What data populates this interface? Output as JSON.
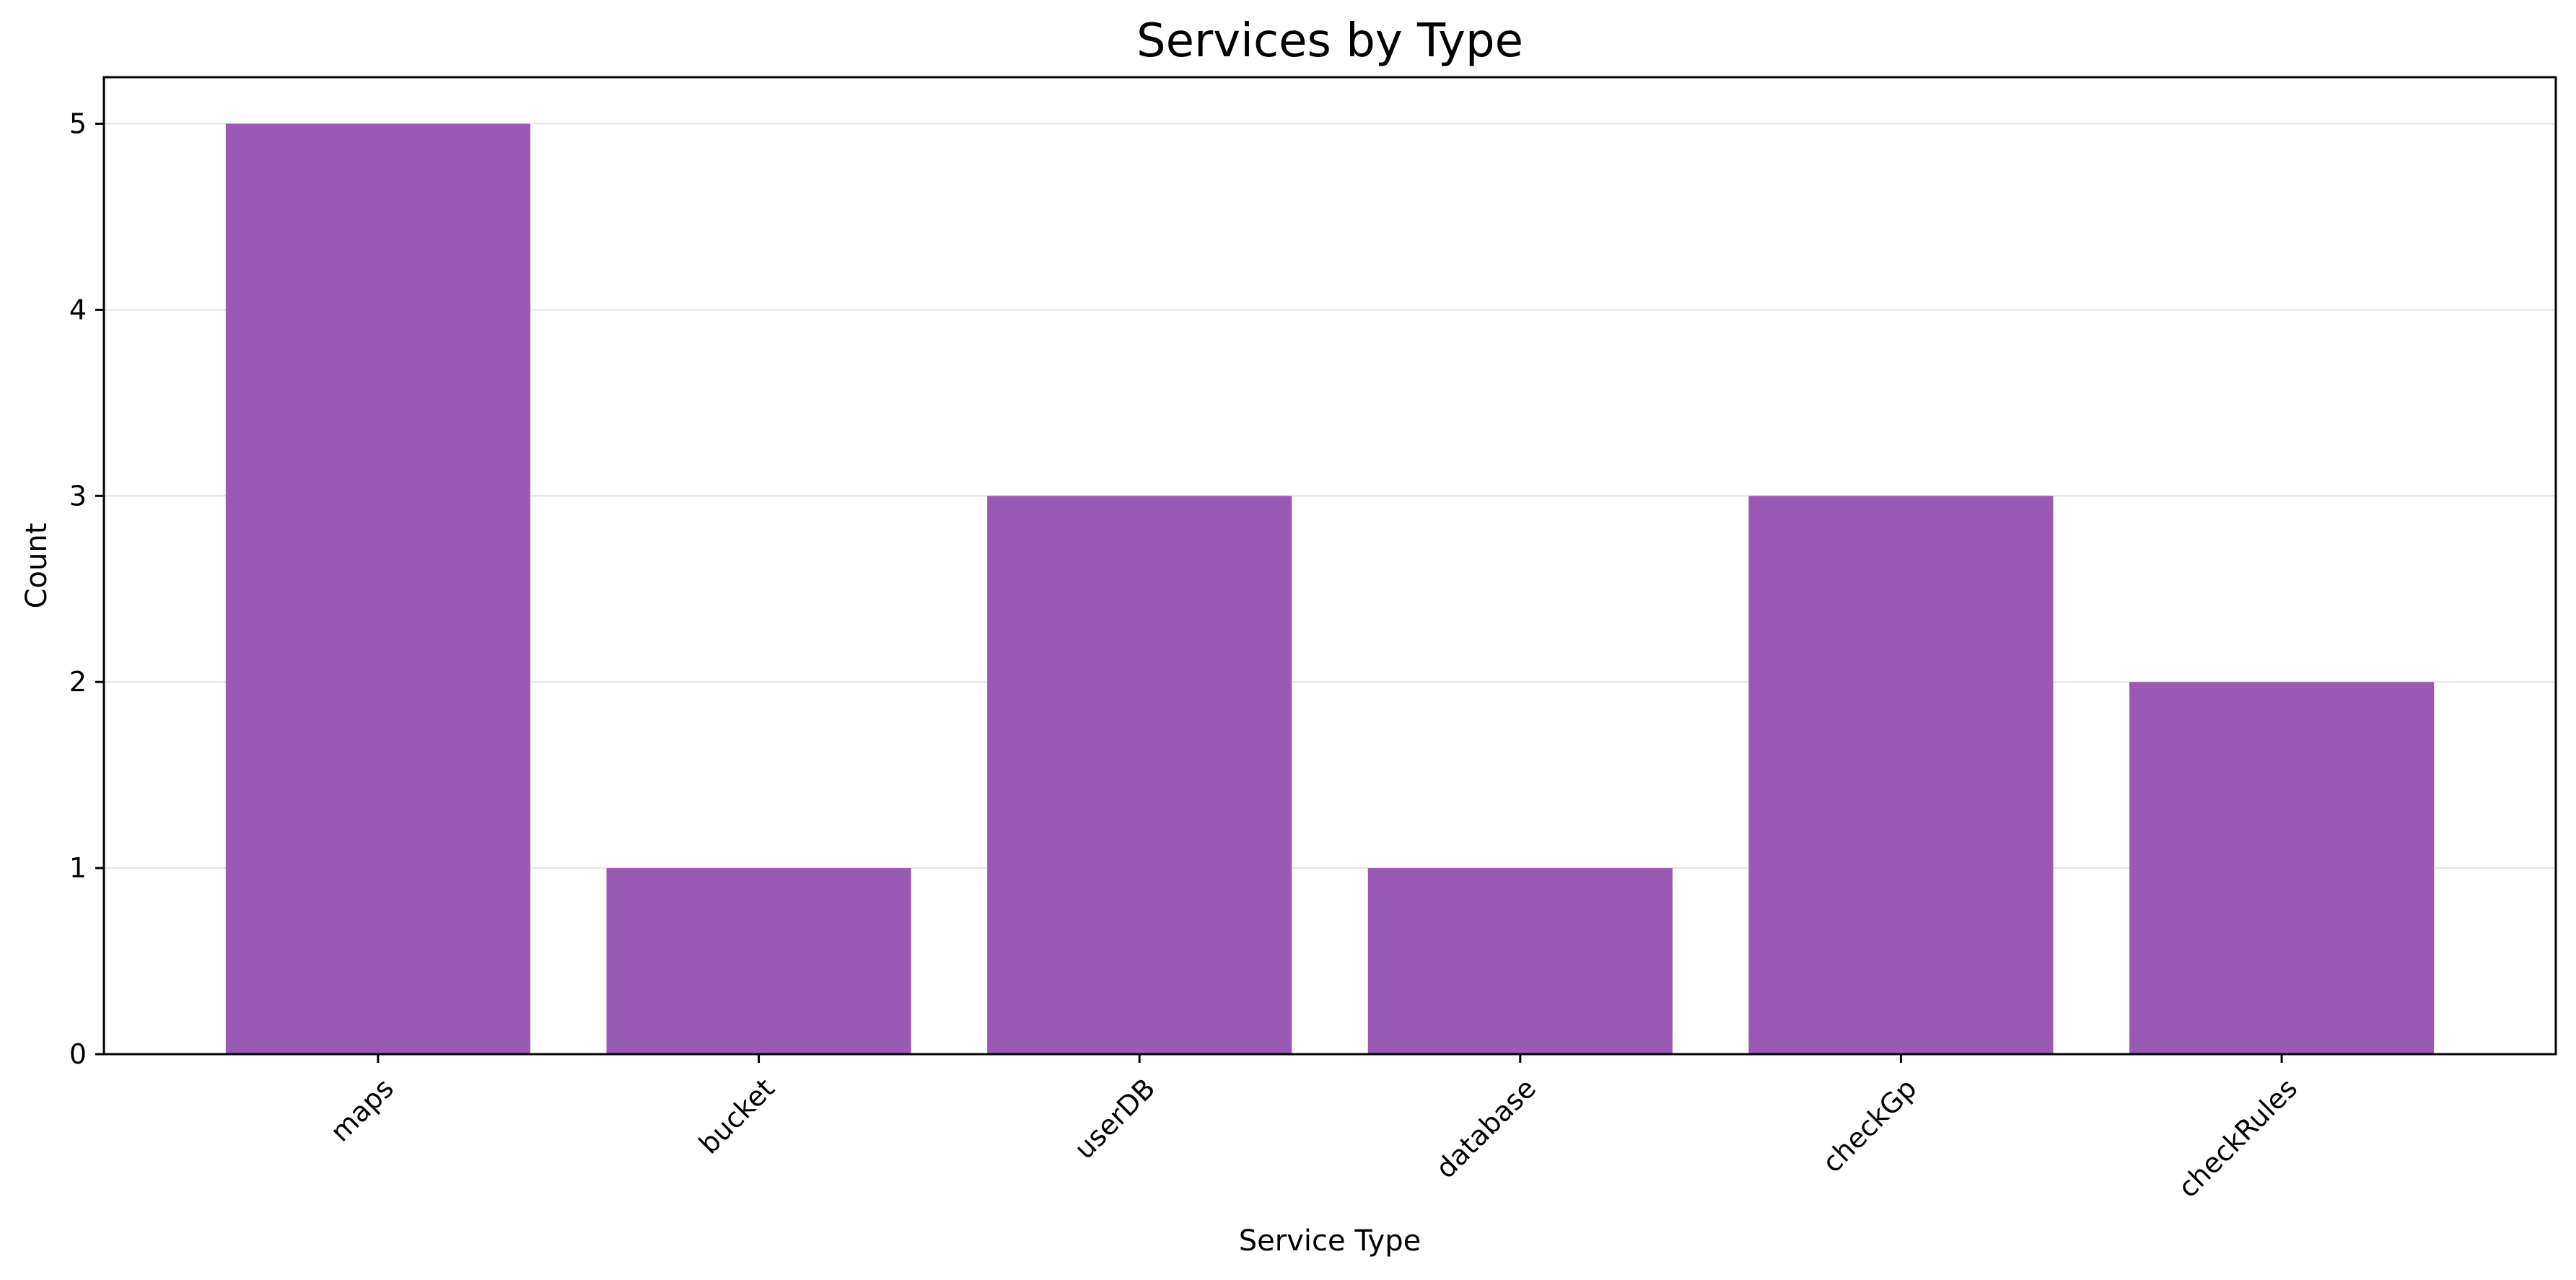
{
  "chart_data": {
    "type": "bar",
    "title": "Services by Type",
    "xlabel": "Service Type",
    "ylabel": "Count",
    "categories": [
      "maps",
      "bucket",
      "userDB",
      "database",
      "checkGp",
      "checkRules"
    ],
    "values": [
      5,
      1,
      3,
      1,
      3,
      2
    ],
    "ylim": [
      0,
      5.25
    ],
    "yticks": [
      0,
      1,
      2,
      3,
      4,
      5
    ],
    "bar_color": "#9b59b6",
    "grid": "horizontal",
    "legend": "none",
    "x_tick_rotation_deg": 45
  }
}
